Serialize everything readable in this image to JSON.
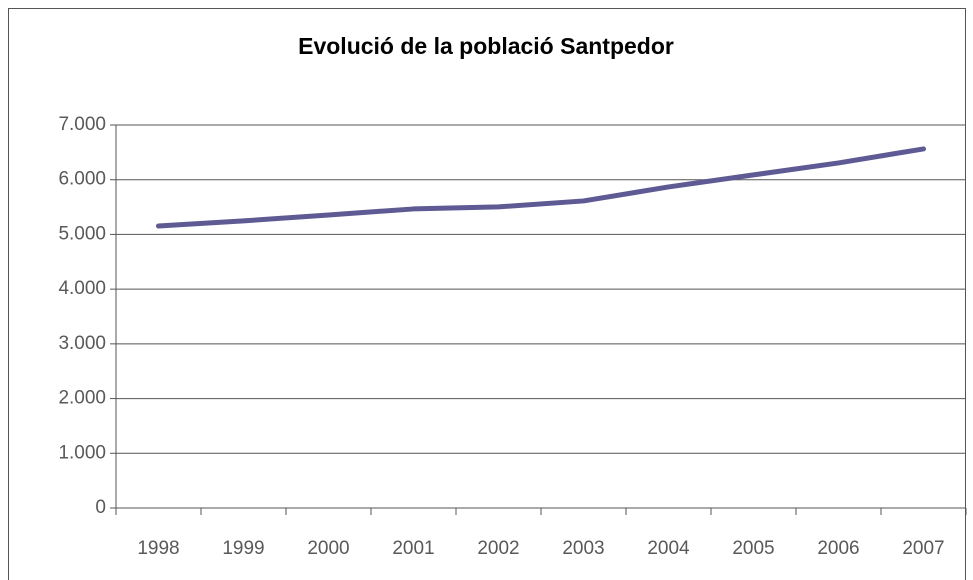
{
  "chart_data": {
    "type": "line",
    "title": "Evolució de la població Santpedor",
    "categories": [
      "1998",
      "1999",
      "2000",
      "2001",
      "2002",
      "2003",
      "2004",
      "2005",
      "2006",
      "2007"
    ],
    "series": [
      {
        "name": "Santpedor",
        "color": "#5e5a94",
        "values": [
          5155,
          5247,
          5356,
          5466,
          5503,
          5612,
          5868,
          6088,
          6307,
          6563
        ]
      }
    ],
    "ylim": [
      0,
      7000
    ],
    "yticks": [
      0,
      {
        "value": 1000,
        "label": "1.000"
      },
      {
        "value": 2000,
        "label": "2.000"
      },
      {
        "value": 3000,
        "label": "3.000"
      },
      {
        "value": 4000,
        "label": "4.000"
      },
      {
        "value": 5000,
        "label": "5.000"
      },
      {
        "value": 6000,
        "label": "6.000"
      },
      {
        "value": 7000,
        "label": "7.000"
      }
    ],
    "grid": true
  }
}
